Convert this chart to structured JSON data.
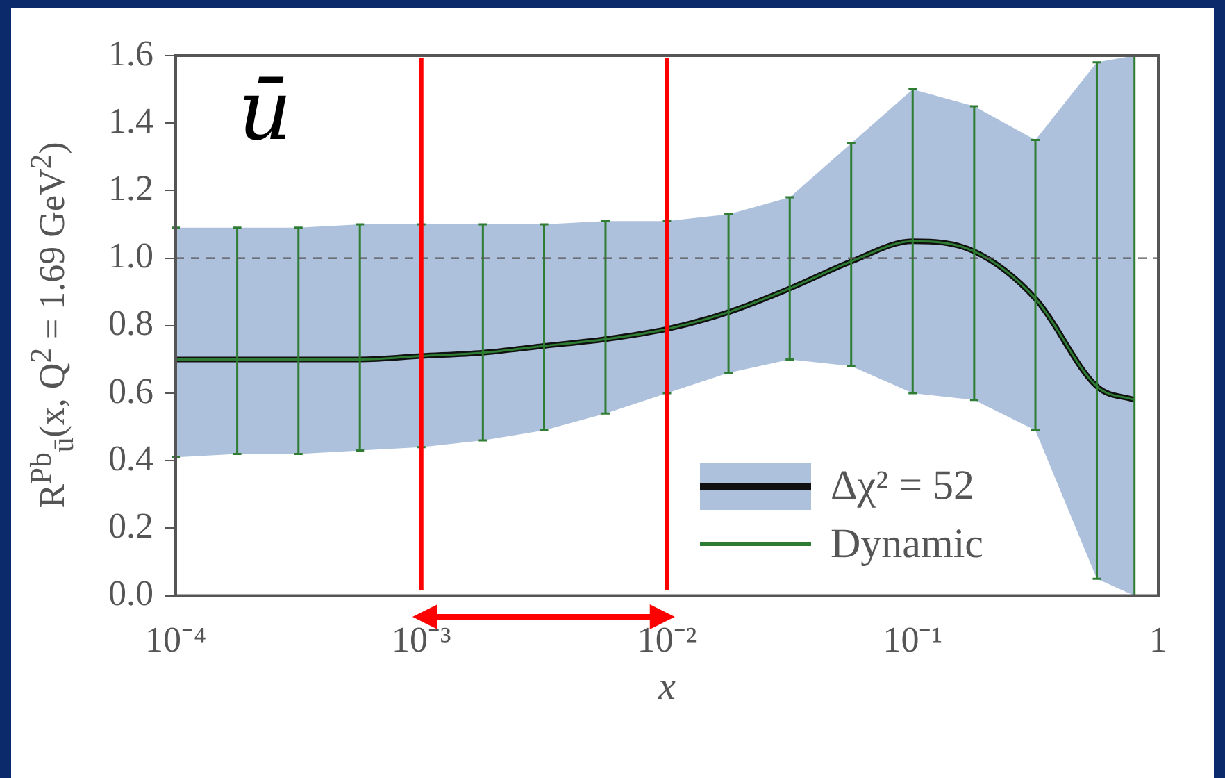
{
  "chart_data": {
    "type": "line",
    "xlabel": "x",
    "ylabel": "R$^{Pb}$$_{ū}$(x, Q$^{2}$ = 1.69 GeV$^{2}$)",
    "annotations": [
      "ū"
    ],
    "log": "x",
    "legend": "bottom right",
    "x": [
      0.0001,
      0.000178,
      0.000316,
      0.000562,
      0.001,
      0.00178,
      0.00316,
      0.00562,
      0.01,
      0.0178,
      0.0316,
      0.0562,
      0.1,
      0.178,
      0.316,
      0.562,
      0.8
    ],
    "xlim": [
      0.0001,
      1
    ],
    "xticks": [
      {
        "value": 0.0001,
        "label": "10⁻⁴"
      },
      {
        "value": 0.001,
        "label": "10⁻³"
      },
      {
        "value": 0.01,
        "label": "10⁻²"
      },
      {
        "value": 0.1,
        "label": "10⁻¹"
      },
      1
    ],
    "ylim": [
      0,
      1.6
    ],
    "yticks": [
      {
        "value": 0,
        "label": "0.0"
      },
      0.2,
      0.4,
      0.6,
      0.8,
      {
        "value": 1,
        "label": "1.0"
      },
      1.2,
      1.4,
      1.6
    ],
    "series": [
      {
        "name": "Δχ² = 52",
        "color": "#111111",
        "values": [
          0.7,
          0.7,
          0.7,
          0.7,
          0.71,
          0.72,
          0.74,
          0.76,
          0.79,
          0.84,
          0.91,
          0.99,
          1.05,
          1.02,
          0.88,
          0.62,
          0.58
        ],
        "lower": [
          0.41,
          0.42,
          0.42,
          0.43,
          0.44,
          0.46,
          0.49,
          0.54,
          0.6,
          0.66,
          0.7,
          0.68,
          0.6,
          0.58,
          0.49,
          0.05,
          0.0
        ],
        "upper": [
          1.09,
          1.09,
          1.09,
          1.1,
          1.1,
          1.1,
          1.1,
          1.11,
          1.11,
          1.13,
          1.18,
          1.34,
          1.5,
          1.45,
          1.35,
          1.58,
          1.6
        ]
      },
      {
        "name": "Dynamic",
        "color": "#2e7d32",
        "values": [
          0.7,
          0.7,
          0.7,
          0.7,
          0.71,
          0.72,
          0.74,
          0.76,
          0.79,
          0.84,
          0.91,
          0.99,
          1.05,
          1.02,
          0.88,
          0.62,
          0.58
        ],
        "errors": [
          [
            0.41,
            1.09
          ],
          [
            0.42,
            1.09
          ],
          [
            0.42,
            1.09
          ],
          [
            0.43,
            1.1
          ],
          [
            0.44,
            1.1
          ],
          [
            0.46,
            1.1
          ],
          [
            0.49,
            1.1
          ],
          [
            0.54,
            1.11
          ],
          [
            0.6,
            1.11
          ],
          [
            0.66,
            1.13
          ],
          [
            0.7,
            1.18
          ],
          [
            0.68,
            1.34
          ],
          [
            0.6,
            1.5
          ],
          [
            0.58,
            1.45
          ],
          [
            0.49,
            1.35
          ],
          [
            0.05,
            1.58
          ],
          [
            0.0,
            1.6
          ]
        ]
      }
    ],
    "ref_lines": [
      {
        "axis": "y",
        "value": 1,
        "color": "#555555",
        "line_style": "dashed"
      },
      {
        "axis": "x",
        "value": 0.001,
        "color": "#ff0000"
      },
      {
        "axis": "x",
        "value": 0.01,
        "color": "#ff0000"
      }
    ]
  }
}
